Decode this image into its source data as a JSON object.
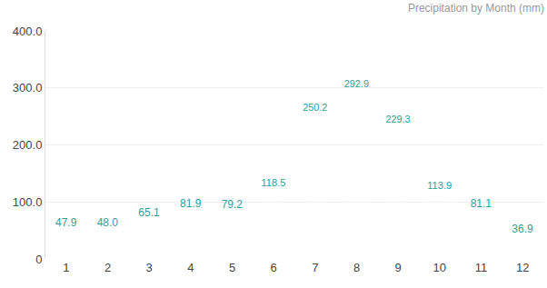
{
  "chart_data": {
    "type": "bar",
    "title": "Precipitation by Month (mm)",
    "categories": [
      "1",
      "2",
      "3",
      "4",
      "5",
      "6",
      "7",
      "8",
      "9",
      "10",
      "11",
      "12"
    ],
    "values": [
      47.9,
      48.0,
      65.1,
      81.9,
      79.2,
      118.5,
      250.2,
      292.9,
      229.3,
      113.9,
      81.1,
      36.9
    ],
    "value_labels": [
      "47.9",
      "48.0",
      "65.1",
      "81.9",
      "79.2",
      "118.5",
      "250.2",
      "292.9",
      "229.3",
      "113.9",
      "81.1",
      "36.9"
    ],
    "data_labels": true,
    "color": "#2f9e96",
    "ylim": [
      0,
      400
    ],
    "yticks": [
      0,
      {
        "value": 100,
        "label": "100.0"
      },
      {
        "value": 200,
        "label": "200.0"
      },
      {
        "value": 300,
        "label": "300.0"
      },
      {
        "value": 400,
        "label": "400.0"
      }
    ],
    "grid": true
  }
}
